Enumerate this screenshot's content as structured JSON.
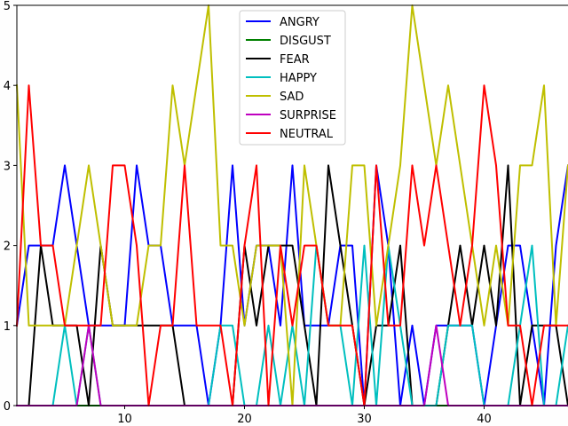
{
  "chart_data": {
    "type": "line",
    "title": "",
    "xlabel": "",
    "ylabel": "",
    "xlim": [
      1,
      47
    ],
    "ylim": [
      0,
      5
    ],
    "x_ticks": [
      10,
      20,
      30,
      40
    ],
    "y_ticks": [
      0,
      1,
      2,
      3,
      4,
      5
    ],
    "grid": false,
    "legend_position": "top-center",
    "x": [
      1,
      2,
      3,
      4,
      5,
      6,
      7,
      8,
      9,
      10,
      11,
      12,
      13,
      14,
      15,
      16,
      17,
      18,
      19,
      20,
      21,
      22,
      23,
      24,
      25,
      26,
      27,
      28,
      29,
      30,
      31,
      32,
      33,
      34,
      35,
      36,
      37,
      38,
      39,
      40,
      41,
      42,
      43,
      44,
      45,
      46,
      47
    ],
    "series": [
      {
        "name": "ANGRY",
        "color": "#0000ff",
        "values": [
          1,
          2,
          2,
          2,
          3,
          2,
          1,
          1,
          1,
          1,
          3,
          2,
          2,
          1,
          1,
          1,
          0,
          1,
          3,
          1,
          2,
          2,
          1,
          3,
          1,
          1,
          1,
          2,
          2,
          0,
          3,
          2,
          0,
          1,
          0,
          1,
          1,
          1,
          1,
          0,
          1,
          2,
          2,
          1,
          0,
          2,
          3
        ]
      },
      {
        "name": "DISGUST",
        "color": "#008000",
        "values": [
          0,
          0,
          0,
          0,
          0,
          0,
          0,
          0,
          0,
          0,
          0,
          0,
          0,
          0,
          0,
          0,
          0,
          0,
          0,
          0,
          0,
          0,
          0,
          0,
          0,
          0,
          0,
          0,
          0,
          0,
          0,
          0,
          0,
          0,
          0,
          0,
          0,
          0,
          0,
          0,
          0,
          0,
          0,
          0,
          0,
          0,
          0
        ]
      },
      {
        "name": "FEAR",
        "color": "#000000",
        "values": [
          0,
          0,
          2,
          1,
          1,
          1,
          0,
          2,
          1,
          1,
          1,
          1,
          1,
          1,
          0,
          0,
          0,
          0,
          0,
          2,
          1,
          2,
          2,
          2,
          1,
          0,
          3,
          2,
          1,
          0,
          1,
          1,
          2,
          0,
          0,
          0,
          1,
          2,
          1,
          2,
          1,
          3,
          0,
          1,
          1,
          1,
          0
        ]
      },
      {
        "name": "HAPPY",
        "color": "#00bfbf",
        "values": [
          0,
          0,
          0,
          0,
          1,
          0,
          1,
          0,
          0,
          0,
          0,
          0,
          0,
          0,
          0,
          0,
          0,
          1,
          1,
          0,
          0,
          1,
          0,
          1,
          0,
          2,
          1,
          1,
          0,
          2,
          0,
          2,
          1,
          0,
          0,
          0,
          1,
          1,
          1,
          0,
          0,
          0,
          1,
          2,
          0,
          0,
          1
        ]
      },
      {
        "name": "SAD",
        "color": "#bfbf00",
        "values": [
          4,
          1,
          1,
          1,
          1,
          2,
          3,
          2,
          1,
          1,
          1,
          2,
          2,
          4,
          3,
          4,
          5,
          2,
          2,
          1,
          2,
          2,
          2,
          0,
          3,
          2,
          1,
          1,
          3,
          3,
          1,
          2,
          3,
          5,
          4,
          3,
          4,
          3,
          2,
          1,
          2,
          1,
          3,
          3,
          4,
          1,
          3
        ]
      },
      {
        "name": "SURPRISE",
        "color": "#bf00bf",
        "values": [
          0,
          0,
          0,
          0,
          0,
          0,
          1,
          0,
          0,
          0,
          0,
          0,
          0,
          0,
          0,
          0,
          0,
          0,
          0,
          0,
          0,
          0,
          0,
          0,
          0,
          0,
          0,
          0,
          0,
          0,
          0,
          0,
          0,
          0,
          0,
          1,
          0,
          0,
          0,
          0,
          0,
          0,
          0,
          0,
          0,
          0,
          0
        ]
      },
      {
        "name": "NEUTRAL",
        "color": "#ff0000",
        "values": [
          1,
          4,
          2,
          2,
          1,
          1,
          1,
          1,
          3,
          3,
          2,
          0,
          1,
          1,
          3,
          1,
          1,
          1,
          0,
          2,
          3,
          0,
          2,
          1,
          2,
          2,
          1,
          1,
          1,
          0,
          3,
          1,
          1,
          3,
          2,
          3,
          2,
          1,
          2,
          4,
          3,
          1,
          1,
          0,
          1,
          1,
          1
        ]
      }
    ]
  }
}
